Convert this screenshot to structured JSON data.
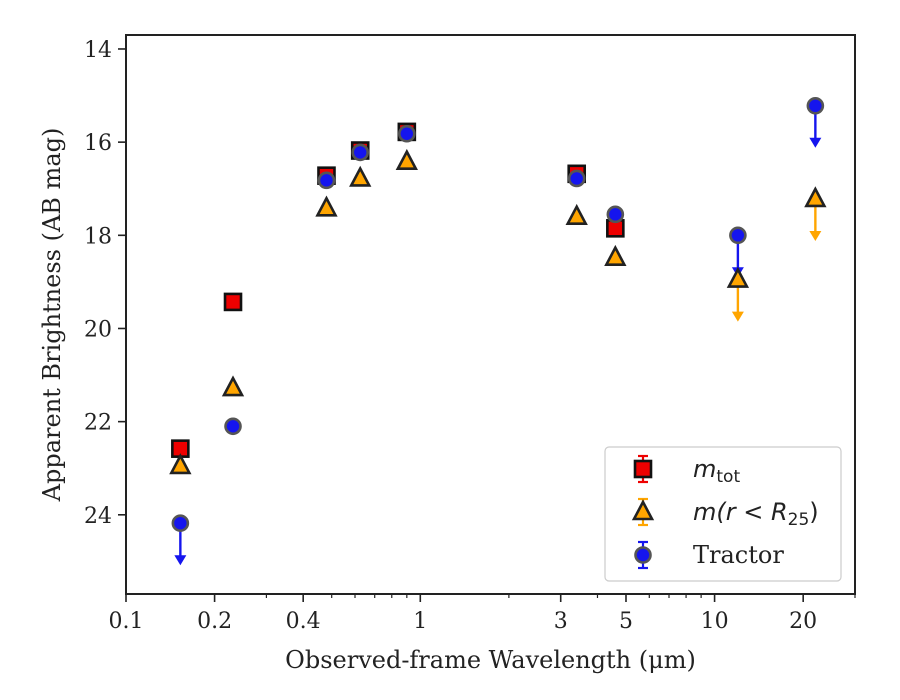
{
  "chart_data": {
    "type": "scatter",
    "xscale": "log",
    "yaxis_inverted": true,
    "xlim": [
      0.1,
      30
    ],
    "ylim": [
      25.7,
      13.7
    ],
    "xlabel": "Observed-frame Wavelength (μm)",
    "ylabel": "Apparent Brightness (AB mag)",
    "x_ticks": [
      0.1,
      0.2,
      0.4,
      1,
      3,
      5,
      10,
      20
    ],
    "x_tick_labels": [
      "0.1",
      "0.2",
      "0.4",
      "1",
      "3",
      "5",
      "10",
      "20"
    ],
    "y_ticks": [
      14,
      16,
      18,
      20,
      22,
      24
    ],
    "y_tick_labels": [
      "14",
      "16",
      "18",
      "20",
      "22",
      "24"
    ],
    "legend_position": "lower-right",
    "series": [
      {
        "name": "m_tot",
        "label_parts": [
          "m",
          "tot"
        ],
        "marker": "square",
        "color": "#ee0000",
        "edge": "#111111",
        "points": [
          {
            "x": 0.153,
            "y": 22.58
          },
          {
            "x": 0.231,
            "y": 19.43
          },
          {
            "x": 0.48,
            "y": 16.72
          },
          {
            "x": 0.625,
            "y": 16.18
          },
          {
            "x": 0.9,
            "y": 15.78
          },
          {
            "x": 3.4,
            "y": 16.68
          },
          {
            "x": 4.6,
            "y": 17.85
          }
        ]
      },
      {
        "name": "m(r<R_25)",
        "label_parts": [
          "m(r < R",
          "25",
          ")"
        ],
        "marker": "triangle",
        "color": "#ffa500",
        "edge": "#222222",
        "points": [
          {
            "x": 0.153,
            "y": 22.95,
            "upper_limit": false
          },
          {
            "x": 0.231,
            "y": 21.28
          },
          {
            "x": 0.48,
            "y": 17.42
          },
          {
            "x": 0.625,
            "y": 16.78
          },
          {
            "x": 0.9,
            "y": 16.42
          },
          {
            "x": 3.4,
            "y": 17.6
          },
          {
            "x": 4.6,
            "y": 18.48
          },
          {
            "x": 12.0,
            "y": 18.95,
            "upper_limit": true
          },
          {
            "x": 22.0,
            "y": 17.22,
            "upper_limit": true
          }
        ]
      },
      {
        "name": "Tractor",
        "marker": "circle",
        "color": "#1515ee",
        "edge": "#555555",
        "points": [
          {
            "x": 0.153,
            "y": 24.18,
            "upper_limit": true
          },
          {
            "x": 0.231,
            "y": 22.1
          },
          {
            "x": 0.48,
            "y": 16.82
          },
          {
            "x": 0.625,
            "y": 16.22
          },
          {
            "x": 0.9,
            "y": 15.82
          },
          {
            "x": 3.4,
            "y": 16.78
          },
          {
            "x": 4.6,
            "y": 17.55
          },
          {
            "x": 12.0,
            "y": 18.0,
            "upper_limit": true
          },
          {
            "x": 22.0,
            "y": 15.22,
            "upper_limit": true
          }
        ]
      }
    ]
  }
}
